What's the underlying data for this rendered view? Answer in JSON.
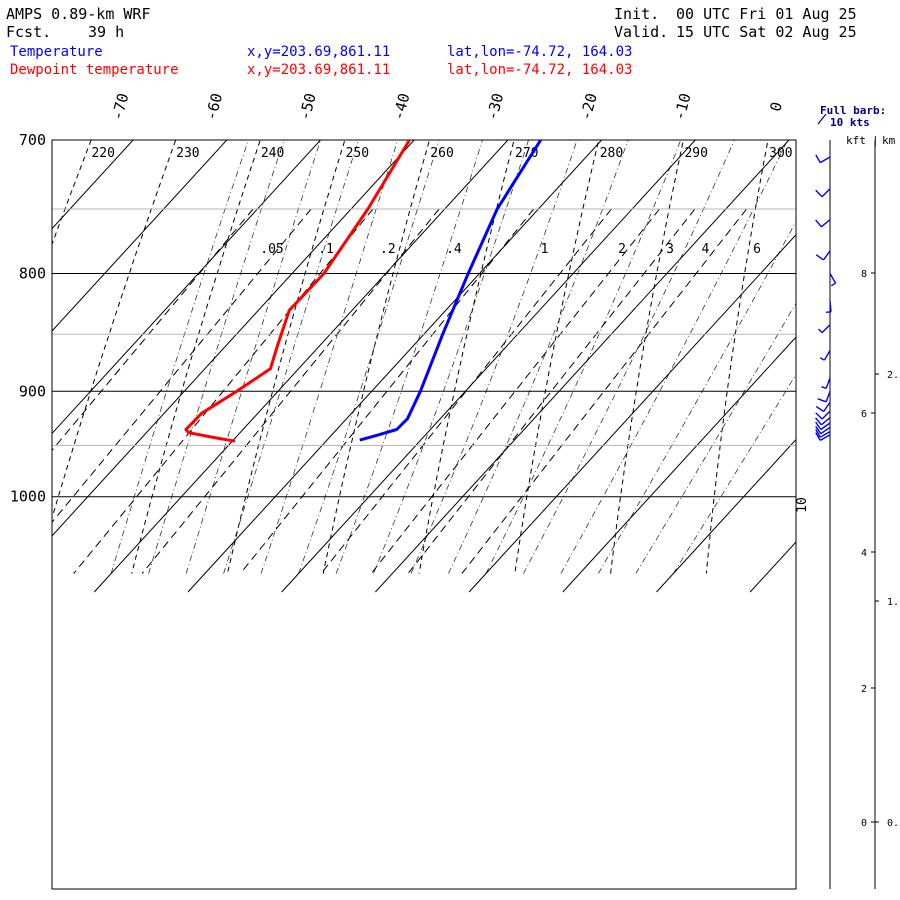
{
  "header": {
    "model": "AMPS 0.89-km WRF",
    "fcst_label": "Fcst.",
    "fcst_value": "39 h",
    "init_label": "Init.",
    "init_value": "00 UTC Fri 01 Aug 25",
    "valid_label": "Valid.",
    "valid_value": "15 UTC Sat 02 Aug 25"
  },
  "legend": [
    {
      "label": "Temperature",
      "xy": "x,y=203.69,861.11",
      "latlon": "lat,lon=-74.72, 164.03",
      "color": "#0000ff"
    },
    {
      "label": "Dewpoint temperature",
      "xy": "x,y=203.69,861.11",
      "latlon": "lat,lon=-74.72, 164.03",
      "color": "#ff0000"
    }
  ],
  "barb_legend": {
    "line1": "Full barb:",
    "line2": "10 kts"
  },
  "chart_data": {
    "type": "line",
    "diagram": "skew-T log-P",
    "pressure_ticks": [
      "700",
      "800",
      "900",
      "1000"
    ],
    "temperature_ticks": [
      "-70",
      "-60",
      "-50",
      "-40",
      "-30",
      "-20",
      "-10",
      "0"
    ],
    "theta_labels": [
      "220",
      "230",
      "240",
      "250",
      "260",
      "270",
      "280",
      "290",
      "300"
    ],
    "mixing_ratio_labels": [
      ".05",
      ".1",
      ".2",
      ".4",
      "1",
      "2",
      "3",
      "4",
      "6"
    ],
    "isotherm_left_label": "10",
    "height_axis": {
      "kft_header": "kft",
      "km_header": "km",
      "kft_ticks": [
        "8",
        "6",
        "4",
        "2",
        "0"
      ],
      "km_ticks": [
        "2.",
        "1.",
        "0."
      ]
    },
    "ylim_hpa": [
      700,
      1040
    ],
    "series": [
      {
        "name": "Temperature",
        "color": "#0000ff",
        "points": [
          {
            "p": 700,
            "t": -26.5
          },
          {
            "p": 750,
            "t": -24.4
          },
          {
            "p": 800,
            "t": -21.2
          },
          {
            "p": 850,
            "t": -18.0
          },
          {
            "p": 900,
            "t": -14.8
          },
          {
            "p": 925,
            "t": -13.5
          },
          {
            "p": 935,
            "t": -13.6
          },
          {
            "p": 940,
            "t": -15.0
          },
          {
            "p": 945,
            "t": -16.5
          }
        ]
      },
      {
        "name": "Dewpoint temperature",
        "color": "#ff0000",
        "points": [
          {
            "p": 700,
            "t": -40.5
          },
          {
            "p": 750,
            "t": -38.2
          },
          {
            "p": 800,
            "t": -36.6
          },
          {
            "p": 830,
            "t": -36.7
          },
          {
            "p": 860,
            "t": -34.5
          },
          {
            "p": 880,
            "t": -33.0
          },
          {
            "p": 900,
            "t": -34.4
          },
          {
            "p": 920,
            "t": -36.0
          },
          {
            "p": 935,
            "t": -36.1
          },
          {
            "p": 938,
            "t": -35.5
          },
          {
            "p": 943,
            "t": -32.0
          },
          {
            "p": 946,
            "t": -29.7
          }
        ]
      }
    ],
    "wind_barbs": [
      {
        "p": 712,
        "dir": 240,
        "kt": 10
      },
      {
        "p": 735,
        "dir": 225,
        "kt": 10
      },
      {
        "p": 758,
        "dir": 230,
        "kt": 10
      },
      {
        "p": 782,
        "dir": 215,
        "kt": 10
      },
      {
        "p": 800,
        "dir": 150,
        "kt": 5
      },
      {
        "p": 822,
        "dir": 175,
        "kt": 5
      },
      {
        "p": 842,
        "dir": 225,
        "kt": 5
      },
      {
        "p": 864,
        "dir": 210,
        "kt": 5
      },
      {
        "p": 888,
        "dir": 200,
        "kt": 5
      },
      {
        "p": 900,
        "dir": 200,
        "kt": 10
      },
      {
        "p": 910,
        "dir": 215,
        "kt": 10
      },
      {
        "p": 918,
        "dir": 225,
        "kt": 10
      },
      {
        "p": 924,
        "dir": 230,
        "kt": 10
      },
      {
        "p": 929,
        "dir": 235,
        "kt": 10
      },
      {
        "p": 933,
        "dir": 235,
        "kt": 10
      },
      {
        "p": 937,
        "dir": 240,
        "kt": 10
      },
      {
        "p": 940,
        "dir": 240,
        "kt": 10
      }
    ]
  }
}
